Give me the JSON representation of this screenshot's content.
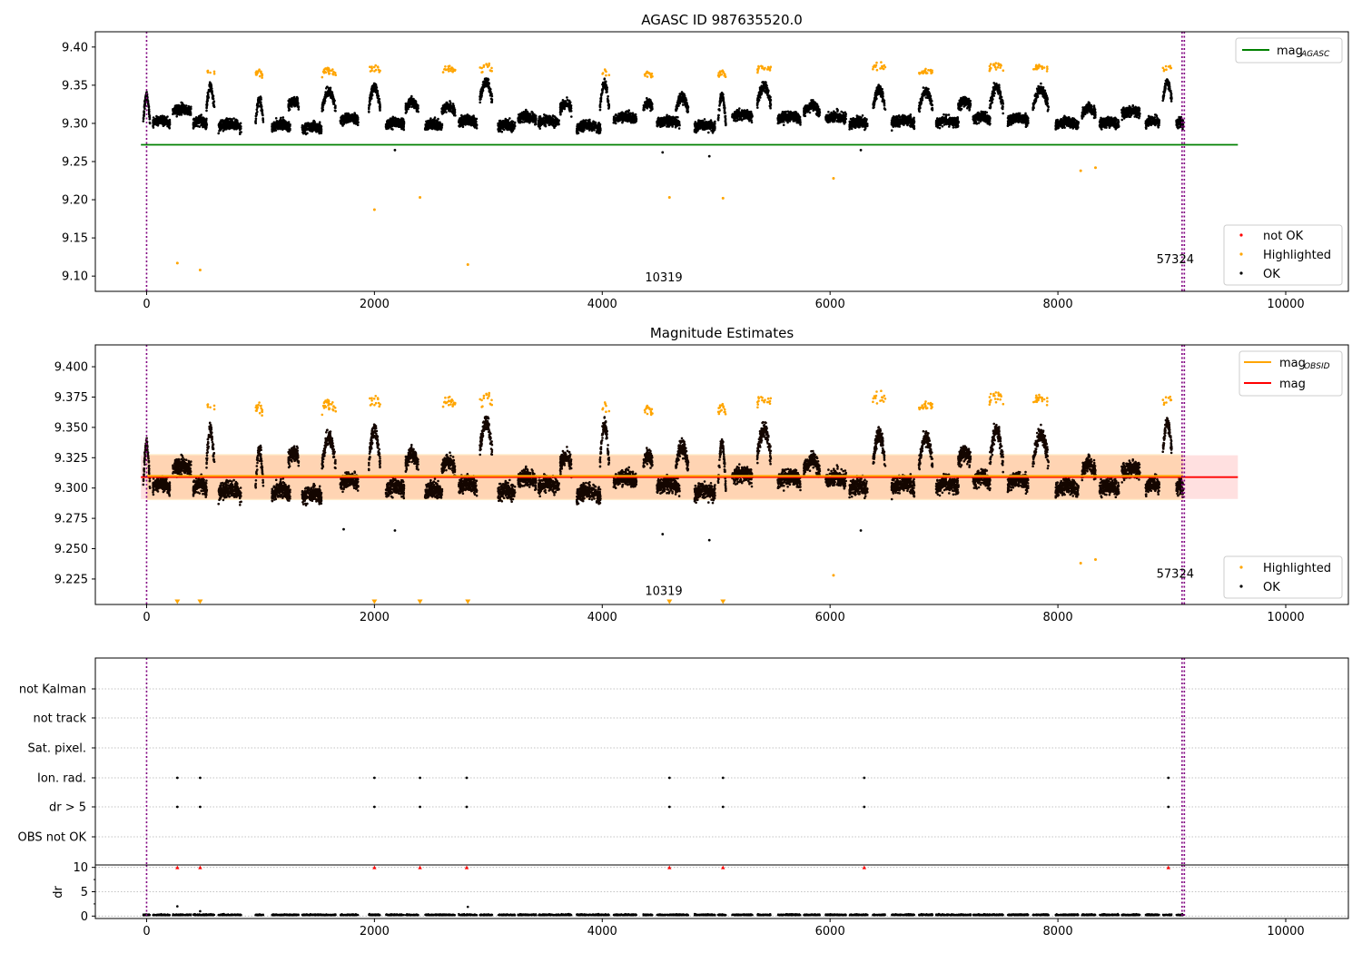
{
  "chart_data": [
    {
      "type": "scatter",
      "title": "AGASC ID 987635520.0",
      "xlim": [
        -450,
        10550
      ],
      "ylim": [
        9.08,
        9.42
      ],
      "xticks": [
        0,
        2000,
        4000,
        6000,
        8000,
        10000
      ],
      "yticks": [
        9.1,
        9.15,
        9.2,
        9.25,
        9.3,
        9.35,
        9.4
      ],
      "ytick_labels": [
        "9.10",
        "9.15",
        "9.20",
        "9.25",
        "9.30",
        "9.35",
        "9.40"
      ],
      "vlines": [
        0,
        9090,
        9110
      ],
      "hline": {
        "name": "mag",
        "subscript": "AGASC",
        "y": 9.272,
        "x0": -50,
        "x1": 9580,
        "color": "#008000"
      },
      "annotations": [
        {
          "text": "10319",
          "x": 4540,
          "y": 9.093
        },
        {
          "text": "57324",
          "x": 9030,
          "y": 9.117
        }
      ],
      "legend_line": {
        "name": "mag",
        "subscript": "AGASC",
        "color": "#008000"
      },
      "legend_points": [
        {
          "name": "not OK",
          "color": "#ff0000"
        },
        {
          "name": "Highlighted",
          "color": "#ffa500"
        },
        {
          "name": "OK",
          "color": "#000000"
        }
      ],
      "outliers": [
        {
          "x": 270,
          "y": 9.117
        },
        {
          "x": 470,
          "y": 9.108
        },
        {
          "x": 2000,
          "y": 9.187
        },
        {
          "x": 2400,
          "y": 9.203
        },
        {
          "x": 2820,
          "y": 9.115
        },
        {
          "x": 4590,
          "y": 9.203
        },
        {
          "x": 5060,
          "y": 9.202
        },
        {
          "x": 6030,
          "y": 9.228
        },
        {
          "x": 8200,
          "y": 9.238
        },
        {
          "x": 8330,
          "y": 9.242
        }
      ],
      "lows": [
        {
          "x": 4530,
          "y": 9.262
        },
        {
          "x": 4940,
          "y": 9.257
        },
        {
          "x": 6270,
          "y": 9.265
        },
        {
          "x": 2180,
          "y": 9.265
        }
      ]
    },
    {
      "type": "scatter",
      "title": "Magnitude Estimates",
      "xlim": [
        -450,
        10550
      ],
      "ylim": [
        9.204,
        9.418
      ],
      "xticks": [
        0,
        2000,
        4000,
        6000,
        8000,
        10000
      ],
      "yticks": [
        9.225,
        9.25,
        9.275,
        9.3,
        9.325,
        9.35,
        9.375,
        9.4
      ],
      "ytick_labels": [
        "9.225",
        "9.250",
        "9.275",
        "9.300",
        "9.325",
        "9.350",
        "9.375",
        "9.400"
      ],
      "vlines": [
        0,
        9090,
        9110
      ],
      "mag_line": {
        "name": "mag",
        "y": 9.309,
        "band": [
          9.291,
          9.327
        ],
        "x0": -50,
        "x1": 9580,
        "color": "#ff0000"
      },
      "mag_obsid_line": {
        "name": "mag",
        "subscript": "OBSID",
        "y": 9.31,
        "band": [
          9.29,
          9.328
        ],
        "x0": 0,
        "x1": 9100,
        "color": "#ffa500"
      },
      "annotations": [
        {
          "text": "10319",
          "x": 4540,
          "y": 9.212
        },
        {
          "text": "57324",
          "x": 9030,
          "y": 9.226
        }
      ],
      "legend_lines": [
        {
          "name": "mag",
          "subscript": "OBSID",
          "color": "#ffa500"
        },
        {
          "name": "mag",
          "subscript": "",
          "color": "#ff0000"
        }
      ],
      "legend_points": [
        {
          "name": "Highlighted",
          "color": "#ffa500"
        },
        {
          "name": "OK",
          "color": "#000000"
        }
      ],
      "outliers": [
        {
          "x": 6030,
          "y": 9.228
        },
        {
          "x": 8200,
          "y": 9.238
        },
        {
          "x": 8330,
          "y": 9.241
        }
      ],
      "lows": [
        {
          "x": 4530,
          "y": 9.262
        },
        {
          "x": 4940,
          "y": 9.257
        },
        {
          "x": 6270,
          "y": 9.265
        },
        {
          "x": 2180,
          "y": 9.265
        },
        {
          "x": 1730,
          "y": 9.266
        }
      ],
      "below_range_markers": [
        270,
        470,
        2000,
        2400,
        2820,
        4590,
        5060
      ]
    },
    {
      "type": "scatter",
      "xlim": [
        -450,
        10550
      ],
      "categories": [
        "not Kalman",
        "not track",
        "Sat. pixel.",
        "Ion. rad.",
        "dr > 5",
        "OBS not OK"
      ],
      "vlines": [
        0,
        9090,
        9110
      ],
      "flags": {
        "Ion. rad.": [
          270,
          470,
          2000,
          2400,
          2810,
          4590,
          5060,
          6300,
          8970
        ],
        "dr > 5": [
          270,
          470,
          2000,
          2400,
          2810,
          4590,
          5060,
          6300,
          8970
        ]
      }
    },
    {
      "type": "scatter",
      "ylabel": "dr",
      "xlim": [
        -450,
        10550
      ],
      "xticks": [
        0,
        2000,
        4000,
        6000,
        8000,
        10000
      ],
      "ylim": [
        -0.5,
        10.5
      ],
      "yticks": [
        0,
        5,
        10
      ],
      "ytick_labels": [
        "0",
        "5",
        "10"
      ],
      "vlines": [
        0,
        9090,
        9110
      ],
      "clipped_markers": [
        270,
        470,
        2000,
        2400,
        2810,
        4590,
        5060,
        6300,
        8970
      ],
      "spikes": [
        {
          "x": 270,
          "y": 2.0
        },
        {
          "x": 2820,
          "y": 1.9
        },
        {
          "x": 470,
          "y": 1.0
        }
      ]
    }
  ],
  "blocks": [
    {
      "c": 0,
      "w": 60,
      "base": 9.3,
      "amp": 0.045
    },
    {
      "c": 130,
      "w": 150,
      "base": 9.3,
      "amp": 0.005
    },
    {
      "c": 310,
      "w": 160,
      "base": 9.315,
      "amp": 0.005
    },
    {
      "c": 470,
      "w": 120,
      "base": 9.3,
      "amp": 0.005
    },
    {
      "c": 560,
      "w": 70,
      "base": 9.32,
      "amp": 0.035,
      "hi": 9.365
    },
    {
      "c": 730,
      "w": 200,
      "base": 9.295,
      "amp": 0.005
    },
    {
      "c": 990,
      "w": 70,
      "base": 9.3,
      "amp": 0.04,
      "hi": 9.362
    },
    {
      "c": 1180,
      "w": 160,
      "base": 9.295,
      "amp": 0.005
    },
    {
      "c": 1290,
      "w": 90,
      "base": 9.322,
      "amp": 0.01
    },
    {
      "c": 1450,
      "w": 170,
      "base": 9.292,
      "amp": 0.005
    },
    {
      "c": 1600,
      "w": 120,
      "base": 9.318,
      "amp": 0.03,
      "hi": 9.365
    },
    {
      "c": 1780,
      "w": 160,
      "base": 9.303,
      "amp": 0.005
    },
    {
      "c": 2000,
      "w": 100,
      "base": 9.32,
      "amp": 0.035,
      "hi": 9.37
    },
    {
      "c": 2180,
      "w": 160,
      "base": 9.298,
      "amp": 0.005
    },
    {
      "c": 2330,
      "w": 110,
      "base": 9.32,
      "amp": 0.01
    },
    {
      "c": 2520,
      "w": 150,
      "base": 9.295,
      "amp": 0.005
    },
    {
      "c": 2650,
      "w": 120,
      "base": 9.315,
      "amp": 0.01,
      "hi": 9.368
    },
    {
      "c": 2820,
      "w": 160,
      "base": 9.3,
      "amp": 0.005
    },
    {
      "c": 2980,
      "w": 110,
      "base": 9.33,
      "amp": 0.03,
      "hi": 9.37
    },
    {
      "c": 3160,
      "w": 150,
      "base": 9.295,
      "amp": 0.005
    },
    {
      "c": 3340,
      "w": 160,
      "base": 9.305,
      "amp": 0.005
    },
    {
      "c": 3530,
      "w": 180,
      "base": 9.3,
      "amp": 0.005
    },
    {
      "c": 3680,
      "w": 100,
      "base": 9.318,
      "amp": 0.01
    },
    {
      "c": 3880,
      "w": 210,
      "base": 9.293,
      "amp": 0.005
    },
    {
      "c": 4020,
      "w": 80,
      "base": 9.32,
      "amp": 0.04,
      "hi": 9.365
    },
    {
      "c": 4200,
      "w": 200,
      "base": 9.305,
      "amp": 0.005
    },
    {
      "c": 4400,
      "w": 80,
      "base": 9.32,
      "amp": 0.01,
      "hi": 9.362
    },
    {
      "c": 4580,
      "w": 200,
      "base": 9.3,
      "amp": 0.005
    },
    {
      "c": 4700,
      "w": 110,
      "base": 9.318,
      "amp": 0.02
    },
    {
      "c": 4900,
      "w": 180,
      "base": 9.295,
      "amp": 0.005
    },
    {
      "c": 5050,
      "w": 70,
      "base": 9.3,
      "amp": 0.045,
      "hi": 9.362
    },
    {
      "c": 5230,
      "w": 180,
      "base": 9.308,
      "amp": 0.005
    },
    {
      "c": 5420,
      "w": 120,
      "base": 9.325,
      "amp": 0.03,
      "hi": 9.37
    },
    {
      "c": 5640,
      "w": 200,
      "base": 9.305,
      "amp": 0.005
    },
    {
      "c": 5840,
      "w": 140,
      "base": 9.315,
      "amp": 0.01
    },
    {
      "c": 6050,
      "w": 180,
      "base": 9.305,
      "amp": 0.005
    },
    {
      "c": 6250,
      "w": 160,
      "base": 9.298,
      "amp": 0.005
    },
    {
      "c": 6430,
      "w": 110,
      "base": 9.32,
      "amp": 0.03,
      "hi": 9.372
    },
    {
      "c": 6640,
      "w": 200,
      "base": 9.3,
      "amp": 0.005
    },
    {
      "c": 6840,
      "w": 120,
      "base": 9.318,
      "amp": 0.03,
      "hi": 9.366
    },
    {
      "c": 7030,
      "w": 200,
      "base": 9.3,
      "amp": 0.005
    },
    {
      "c": 7180,
      "w": 110,
      "base": 9.322,
      "amp": 0.01
    },
    {
      "c": 7330,
      "w": 150,
      "base": 9.305,
      "amp": 0.005
    },
    {
      "c": 7460,
      "w": 120,
      "base": 9.32,
      "amp": 0.035,
      "hi": 9.372
    },
    {
      "c": 7650,
      "w": 180,
      "base": 9.303,
      "amp": 0.005
    },
    {
      "c": 7850,
      "w": 140,
      "base": 9.32,
      "amp": 0.03,
      "hi": 9.37
    },
    {
      "c": 8080,
      "w": 200,
      "base": 9.298,
      "amp": 0.005
    },
    {
      "c": 8270,
      "w": 120,
      "base": 9.312,
      "amp": 0.01
    },
    {
      "c": 8450,
      "w": 170,
      "base": 9.298,
      "amp": 0.005
    },
    {
      "c": 8640,
      "w": 160,
      "base": 9.312,
      "amp": 0.005
    },
    {
      "c": 8830,
      "w": 120,
      "base": 9.3,
      "amp": 0.005
    },
    {
      "c": 8960,
      "w": 80,
      "base": 9.33,
      "amp": 0.03,
      "hi": 9.37
    },
    {
      "c": 9070,
      "w": 60,
      "base": 9.298,
      "amp": 0.005
    }
  ]
}
